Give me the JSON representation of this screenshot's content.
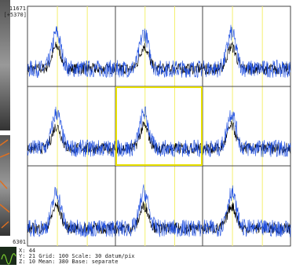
{
  "labels": {
    "top_value": "11671",
    "top_offset": "[+5370]",
    "bottom_value": "6301"
  },
  "status": {
    "lines": [
      "X: 44",
      "Y: 21  Grid:  100 Scale: 30 datum/pix",
      "Z: 10  Mean:  380  Base: separate"
    ]
  }
}
